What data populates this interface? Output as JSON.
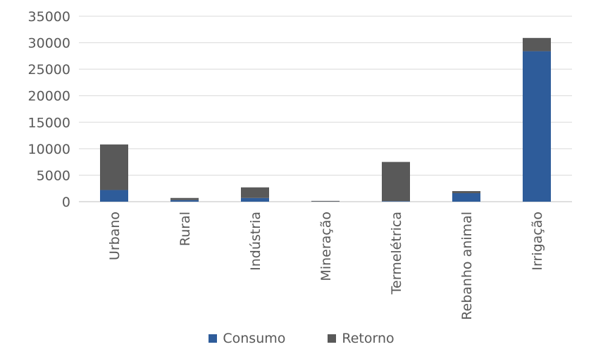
{
  "chart_data": {
    "type": "bar",
    "stacked": true,
    "title": "",
    "xlabel": "",
    "ylabel": "",
    "ylim": [
      0,
      35000
    ],
    "yticks": [
      0,
      5000,
      10000,
      15000,
      20000,
      25000,
      30000,
      35000
    ],
    "grid": true,
    "legend_position": "bottom",
    "categories": [
      "Urbano",
      "Rural",
      "Indústria",
      "Mineração",
      "Termelétrica",
      "Rebanho animal",
      "Irrigação"
    ],
    "series": [
      {
        "name": "Consumo",
        "color": "#2E5C9A",
        "values": [
          2200,
          300,
          700,
          30,
          100,
          1600,
          28400
        ]
      },
      {
        "name": "Retorno",
        "color": "#595959",
        "values": [
          8600,
          400,
          2000,
          120,
          7400,
          400,
          2500
        ]
      }
    ]
  }
}
